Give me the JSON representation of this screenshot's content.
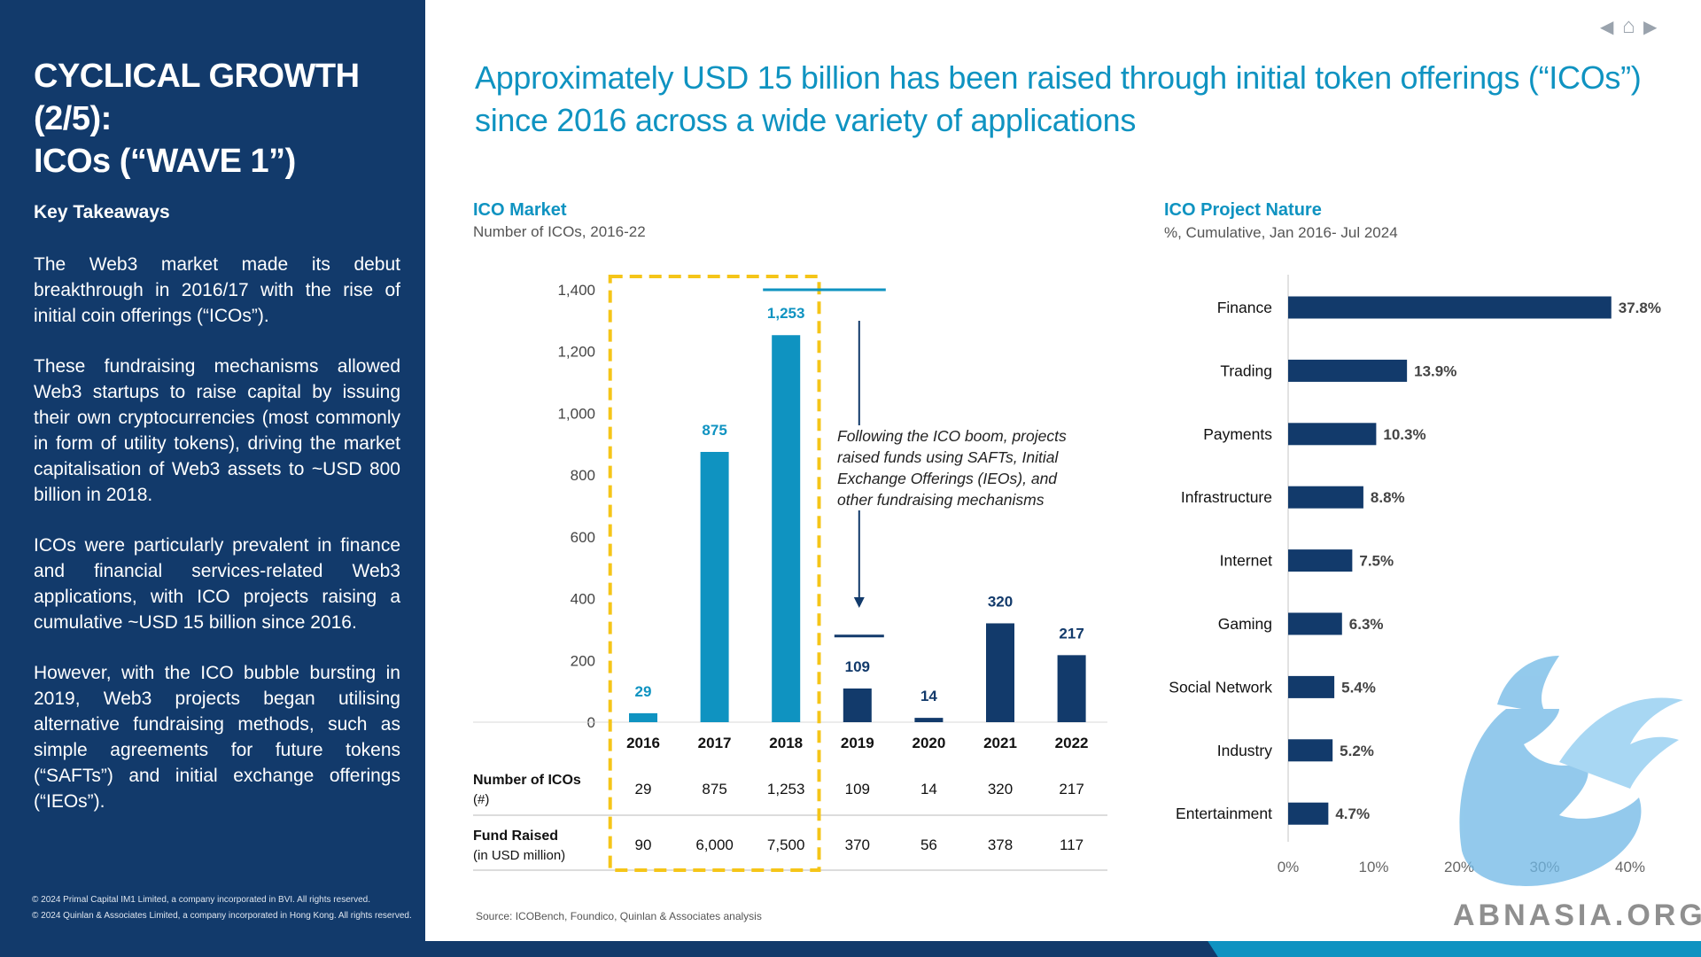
{
  "left": {
    "title_line1": "CYCLICAL GROWTH (2/5):",
    "title_line2": "ICOs (“WAVE 1”)",
    "key_takeaways": "Key Takeaways",
    "paragraphs": [
      "The Web3 market made its debut breakthrough in 2016/17 with the rise of initial coin offerings (“ICOs”).",
      "These fundraising mechanisms allowed Web3 startups to raise capital by issuing their own cryptocurrencies (most commonly in form of utility tokens), driving the market capitalisation of Web3 assets to ~USD 800 billion in 2018.",
      "ICOs were particularly prevalent in finance and financial services-related Web3 applications, with ICO projects raising a cumulative ~USD 15 billion since 2016.",
      "However, with the ICO bubble bursting in 2019, Web3 projects began utilising alternative fundraising methods, such as simple agreements for future tokens (“SAFTs”) and initial exchange offerings (“IEOs”)."
    ],
    "copyright1": "© 2024 Primal Capital IM1 Limited, a company incorporated in BVI. All rights reserved.",
    "copyright2": "© 2024 Quinlan & Associates Limited, a company incorporated in Hong Kong. All rights reserved."
  },
  "headline": "Approximately USD 15 billion has been raised through initial token offerings (“ICOs”) since 2016 across a wide variety of applications",
  "nav_icons": [
    "prev-arrow-icon",
    "home-icon",
    "next-arrow-icon"
  ],
  "colors": {
    "navy": "#123a6b",
    "teal": "#0f93c1",
    "highlight": "#f5c518"
  },
  "source": "Source: ICOBench, Foundico, Quinlan & Associates analysis",
  "watermark": "ABNASIA.ORG",
  "chart_data": [
    {
      "type": "bar",
      "title": "ICO Market",
      "subtitle": "Number of ICOs, 2016-22",
      "categories": [
        "2016",
        "2017",
        "2018",
        "2019",
        "2020",
        "2021",
        "2022"
      ],
      "values": [
        29,
        875,
        1253,
        109,
        14,
        320,
        217
      ],
      "value_labels": [
        "29",
        "875",
        "1,253",
        "109",
        "14",
        "320",
        "217"
      ],
      "bar_colors": [
        "#0f93c1",
        "#0f93c1",
        "#0f93c1",
        "#123a6b",
        "#123a6b",
        "#123a6b",
        "#123a6b"
      ],
      "ylim": [
        0,
        1400
      ],
      "yticks": [
        "0",
        "200",
        "400",
        "600",
        "800",
        "1,000",
        "1,200",
        "1,400"
      ],
      "grid": false,
      "highlight_years": [
        "2016",
        "2017",
        "2018"
      ],
      "annotation": "Following the ICO boom, projects raised funds using SAFTs, Initial Exchange Offerings (IEOs), and other fundraising mechanisms",
      "table": {
        "rows": [
          {
            "label": "Number of ICOs",
            "sublabel": "(#)",
            "values": [
              "29",
              "875",
              "1,253",
              "109",
              "14",
              "320",
              "217"
            ]
          },
          {
            "label": "Fund Raised",
            "sublabel": "(in USD million)",
            "values": [
              "90",
              "6,000",
              "7,500",
              "370",
              "56",
              "378",
              "117"
            ]
          }
        ]
      }
    },
    {
      "type": "bar",
      "orientation": "horizontal",
      "title": "ICO Project Nature",
      "subtitle": "%, Cumulative, Jan 2016- Jul 2024",
      "categories": [
        "Finance",
        "Trading",
        "Payments",
        "Infrastructure",
        "Internet",
        "Gaming",
        "Social Network",
        "Industry",
        "Entertainment"
      ],
      "values": [
        37.8,
        13.9,
        10.3,
        8.8,
        7.5,
        6.3,
        5.4,
        5.2,
        4.7
      ],
      "value_labels": [
        "37.8%",
        "13.9%",
        "10.3%",
        "8.8%",
        "7.5%",
        "6.3%",
        "5.4%",
        "5.2%",
        "4.7%"
      ],
      "color": "#123a6b",
      "xlim": [
        0,
        40
      ],
      "xticks": [
        "0%",
        "10%",
        "20%",
        "30%",
        "40%"
      ],
      "grid": false
    }
  ]
}
